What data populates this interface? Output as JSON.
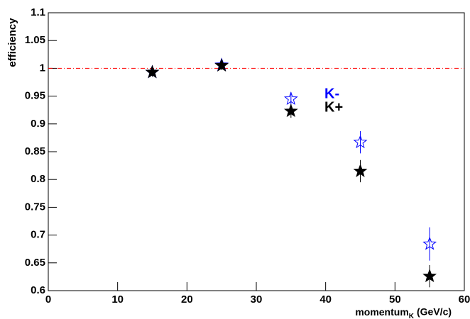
{
  "chart_data": {
    "type": "scatter",
    "y_label": "efficiency",
    "x_label": "momentum",
    "x_label_subscript": "K",
    "x_label_unit": "(GeV/c)",
    "x": [
      15,
      25,
      35,
      45,
      55
    ],
    "series": [
      {
        "name": "K-",
        "color": "#0000ff",
        "marker": "open-star",
        "values": [
          0.993,
          1.006,
          0.945,
          0.867,
          0.684
        ],
        "errors": [
          0.008,
          0.008,
          0.012,
          0.02,
          0.03
        ]
      },
      {
        "name": "K+",
        "color": "#000000",
        "marker": "filled-star",
        "values": [
          0.993,
          1.005,
          0.923,
          0.815,
          0.626
        ],
        "errors": [
          0.008,
          0.008,
          0.012,
          0.02,
          0.02
        ]
      }
    ],
    "reference_line": {
      "value": 1,
      "color": "#ff0000"
    },
    "xlim": [
      0,
      60
    ],
    "xticks": [
      0,
      10,
      20,
      30,
      40,
      50,
      60
    ],
    "ylim": [
      0.6,
      1.1
    ],
    "yticks": [
      0.6,
      0.65,
      0.7,
      0.75,
      0.8,
      0.85,
      0.9,
      0.95,
      1,
      1.05,
      1.1
    ]
  }
}
